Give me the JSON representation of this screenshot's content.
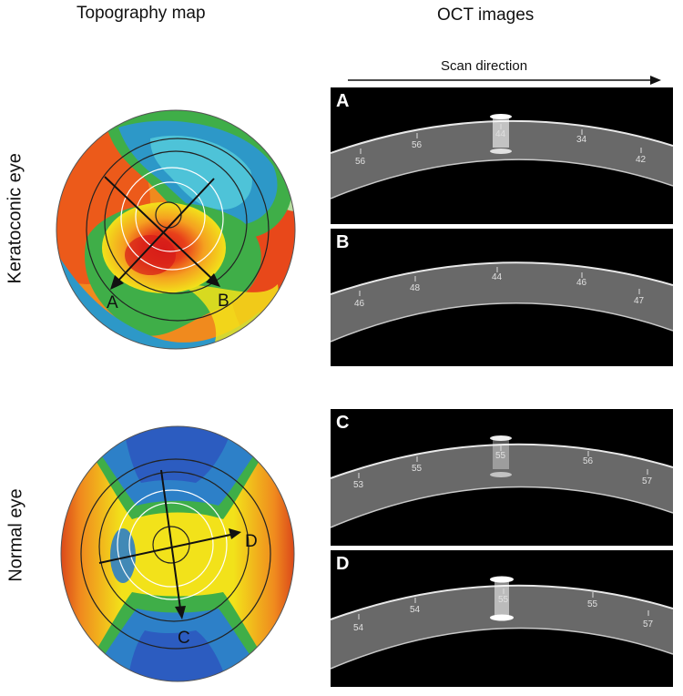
{
  "headers": {
    "topography": "Topography map",
    "oct": "OCT images"
  },
  "scan_direction": "Scan direction",
  "row_labels": {
    "keratoconic": "Keratoconic eye",
    "normal": "Normal eye"
  },
  "topo_labels": {
    "keratoconic": {
      "a": "A",
      "b": "B"
    },
    "normal": {
      "c": "C",
      "d": "D"
    }
  },
  "panels": [
    {
      "letter": "A",
      "values": [
        "56",
        "56",
        "44",
        "34",
        "42"
      ]
    },
    {
      "letter": "B",
      "values": [
        "46",
        "48",
        "44",
        "46",
        "47"
      ]
    },
    {
      "letter": "C",
      "values": [
        "53",
        "55",
        "55",
        "56",
        "57"
      ]
    },
    {
      "letter": "D",
      "values": [
        "54",
        "54",
        "55",
        "55",
        "57"
      ]
    }
  ],
  "colors": {
    "red": "#e8301a",
    "orange": "#f5a020",
    "yellow": "#f2e21a",
    "green": "#3fae48",
    "blue": "#2d80c8",
    "light_blue": "#4ec3d8"
  }
}
